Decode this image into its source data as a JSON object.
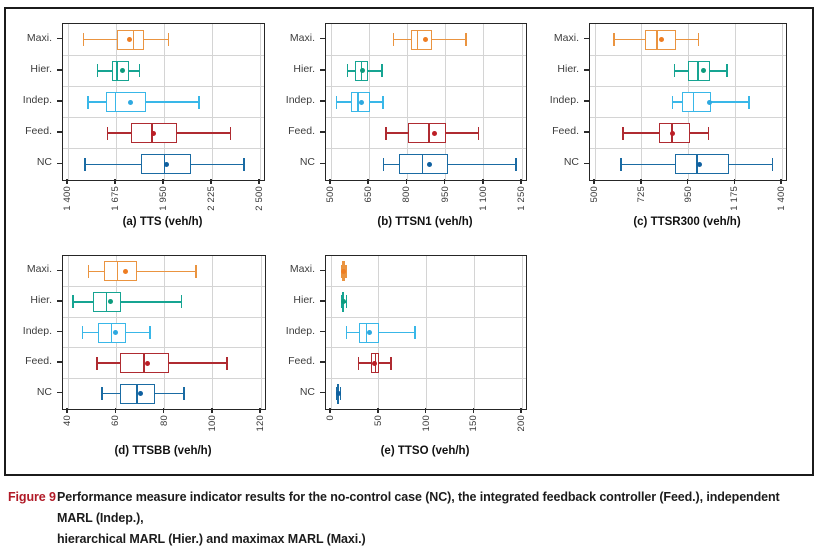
{
  "caption": {
    "label": "Figure 9",
    "lines": [
      "Performance measure indicator results for the no-control case (NC), the integrated feedback controller (Feed.), independent MARL (Indep.),",
      "hierarchical MARL (Hier.) and maximax MARL (Maxi.)"
    ]
  },
  "categories": [
    "Maxi.",
    "Hier.",
    "Indep.",
    "Feed.",
    "NC"
  ],
  "colors": {
    "grid": "#d4d4d4",
    "axis": "#2b2b2b",
    "plot_border": "#262626",
    "category_label": "#3d3d3d",
    "tick_label": "#3a3a3a",
    "title": "#111111",
    "caption_label": "#b11a27",
    "caption_text": "#1c1c1c",
    "series": {
      "Maxi.": {
        "stroke": "#EA9440",
        "dot": "#EE7D22"
      },
      "Hier.": {
        "stroke": "#16A492",
        "dot": "#0C9B7D"
      },
      "Indep.": {
        "stroke": "#39B7E8",
        "dot": "#2EA9E0"
      },
      "Feed.": {
        "stroke": "#AF2B31",
        "dot": "#BC1E26"
      },
      "NC": {
        "stroke": "#1A6BA3",
        "dot": "#0F60A0"
      }
    }
  },
  "chart_data": [
    {
      "type": "boxplot",
      "title": "(a) TTS (veh/h)",
      "xlim": [
        1400,
        2500
      ],
      "tick_values": [
        1400,
        1675,
        1950,
        2225,
        2500
      ],
      "tick_labels": [
        "1 400",
        "1 675",
        "1 950",
        "2 225",
        "2 500"
      ],
      "rows": [
        {
          "label": "Maxi.",
          "min": 1490,
          "q1": 1680,
          "median": 1775,
          "q3": 1838,
          "max": 1975,
          "mean": 1755
        },
        {
          "label": "Hier.",
          "min": 1568,
          "q1": 1650,
          "median": 1680,
          "q3": 1750,
          "max": 1810,
          "mean": 1710
        },
        {
          "label": "Indep.",
          "min": 1515,
          "q1": 1615,
          "median": 1672,
          "q3": 1845,
          "max": 2150,
          "mean": 1757
        },
        {
          "label": "Feed.",
          "min": 1625,
          "q1": 1762,
          "median": 1880,
          "q3": 2022,
          "max": 2332,
          "mean": 1890
        },
        {
          "label": "NC",
          "min": 1497,
          "q1": 1818,
          "median": 1954,
          "q3": 2105,
          "max": 2408,
          "mean": 1962
        }
      ]
    },
    {
      "type": "boxplot",
      "title": "(b) TTSN1 (veh/h)",
      "xlim": [
        500,
        1250
      ],
      "tick_values": [
        500,
        650,
        800,
        950,
        1100,
        1250
      ],
      "tick_labels": [
        "500",
        "650",
        "800",
        "950",
        "1 100",
        "1 250"
      ],
      "rows": [
        {
          "label": "Maxi.",
          "min": 746,
          "q1": 814,
          "median": 840,
          "q3": 896,
          "max": 1031,
          "mean": 870
        },
        {
          "label": "Hier.",
          "min": 565,
          "q1": 595,
          "median": 620,
          "q3": 644,
          "max": 700,
          "mean": 623
        },
        {
          "label": "Indep.",
          "min": 522,
          "q1": 578,
          "median": 606,
          "q3": 654,
          "max": 704,
          "mean": 621
        },
        {
          "label": "Feed.",
          "min": 716,
          "q1": 802,
          "median": 885,
          "q3": 952,
          "max": 1080,
          "mean": 907
        },
        {
          "label": "NC",
          "min": 707,
          "q1": 768,
          "median": 860,
          "q3": 959,
          "max": 1226,
          "mean": 885
        }
      ]
    },
    {
      "type": "boxplot",
      "title": "(c) TTSR300 (veh/h)",
      "xlim": [
        500,
        1400
      ],
      "tick_values": [
        500,
        725,
        950,
        1175,
        1400
      ],
      "tick_labels": [
        "500",
        "725",
        "950",
        "1 175",
        "1 400"
      ],
      "rows": [
        {
          "label": "Maxi.",
          "min": 592,
          "q1": 742,
          "median": 798,
          "q3": 890,
          "max": 997,
          "mean": 818
        },
        {
          "label": "Hier.",
          "min": 883,
          "q1": 947,
          "median": 997,
          "q3": 1054,
          "max": 1135,
          "mean": 1023
        },
        {
          "label": "Indep.",
          "min": 872,
          "q1": 921,
          "median": 974,
          "q3": 1058,
          "max": 1242,
          "mean": 1051
        },
        {
          "label": "Feed.",
          "min": 635,
          "q1": 806,
          "median": 872,
          "q3": 956,
          "max": 1046,
          "mean": 875
        },
        {
          "label": "NC",
          "min": 626,
          "q1": 887,
          "median": 990,
          "q3": 1147,
          "max": 1354,
          "mean": 1002
        }
      ]
    },
    {
      "type": "boxplot",
      "title": "(d) TTSBB (veh/h)",
      "xlim": [
        40,
        120
      ],
      "tick_values": [
        40,
        60,
        80,
        100,
        120
      ],
      "tick_labels": [
        "40",
        "60",
        "80",
        "100",
        "120"
      ],
      "rows": [
        {
          "label": "Maxi.",
          "min": 48.5,
          "q1": 55,
          "median": 60.5,
          "q3": 68.5,
          "max": 93,
          "mean": 64
        },
        {
          "label": "Hier.",
          "min": 42,
          "q1": 50.5,
          "median": 56,
          "q3": 62,
          "max": 87,
          "mean": 57.5
        },
        {
          "label": "Indep.",
          "min": 46,
          "q1": 52.5,
          "median": 58,
          "q3": 64,
          "max": 74,
          "mean": 59.5
        },
        {
          "label": "Feed.",
          "min": 52,
          "q1": 61.5,
          "median": 71.5,
          "q3": 82,
          "max": 106,
          "mean": 73
        },
        {
          "label": "NC",
          "min": 54,
          "q1": 61.5,
          "median": 68.5,
          "q3": 76,
          "max": 88,
          "mean": 70
        }
      ]
    },
    {
      "type": "boxplot",
      "title": "(e) TTSO (veh/h)",
      "xlim": [
        0,
        200
      ],
      "tick_values": [
        0,
        50,
        100,
        150,
        200
      ],
      "tick_labels": [
        "0",
        "50",
        "100",
        "150",
        "200"
      ],
      "rows": [
        {
          "label": "Maxi.",
          "min": 11,
          "q1": 12,
          "median": 13.5,
          "q3": 14.5,
          "max": 15.5,
          "mean": 13
        },
        {
          "label": "Hier.",
          "min": 11,
          "q1": 12,
          "median": 13,
          "q3": 14,
          "max": 16,
          "mean": 13
        },
        {
          "label": "Indep.",
          "min": 16,
          "q1": 29,
          "median": 37,
          "q3": 50,
          "max": 88,
          "mean": 40
        },
        {
          "label": "Feed.",
          "min": 29,
          "q1": 41.5,
          "median": 46.5,
          "q3": 50.5,
          "max": 63,
          "mean": 45.5
        },
        {
          "label": "NC",
          "min": 5.5,
          "q1": 6.5,
          "median": 7.5,
          "q3": 8.5,
          "max": 10,
          "mean": 7.5
        }
      ]
    }
  ]
}
